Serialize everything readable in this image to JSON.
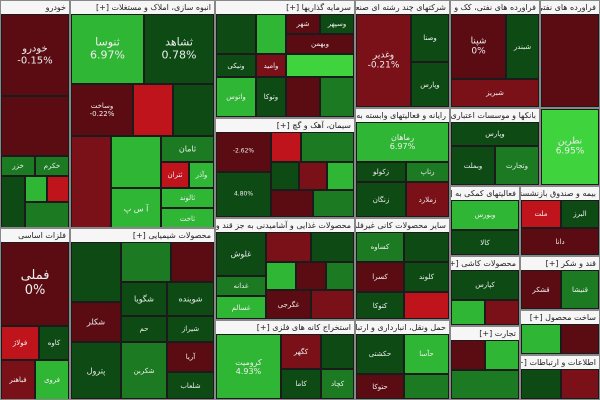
{
  "colors": {
    "dark_red": "#5a0c12",
    "mid_red": "#7a1018",
    "red": "#c0141c",
    "dark_green": "#0d4a14",
    "mid_green": "#1c7a22",
    "green": "#2fb635",
    "light_green": "#3fd43e"
  },
  "sections": [
    {
      "title": "خودرو",
      "tiles": [
        {
          "symbol": "خودرو",
          "pct": "-0.15%"
        },
        {
          "symbol": "",
          "pct": ""
        },
        {
          "symbol": "خزر",
          "pct": ""
        },
        {
          "symbol": "خکرم",
          "pct": ""
        }
      ]
    },
    {
      "title": "انبوه سازی، املاک و مستغلات [+]",
      "tiles": [
        {
          "symbol": "ثنوسا",
          "pct": "6.97%"
        },
        {
          "symbol": "ثشاهد",
          "pct": "0.78%"
        },
        {
          "symbol": "وساخت",
          "pct": "-0.22%"
        },
        {
          "symbol": "ثامان",
          "pct": ""
        },
        {
          "symbol": "ثتران",
          "pct": ""
        },
        {
          "symbol": "وآذر",
          "pct": ""
        },
        {
          "symbol": "ثالوند",
          "pct": ""
        },
        {
          "symbol": "آ س پ",
          "pct": ""
        },
        {
          "symbol": "ثاخت",
          "pct": ""
        }
      ]
    },
    {
      "title": "سرمایه گذاریها [+]",
      "tiles": [
        {
          "symbol": "وسپهر",
          "pct": ""
        },
        {
          "symbol": "شهر",
          "pct": ""
        },
        {
          "symbol": "وبهمن",
          "pct": ""
        },
        {
          "symbol": "ونیکی",
          "pct": ""
        },
        {
          "symbol": "وامید",
          "pct": ""
        },
        {
          "symbol": "وتوکا",
          "pct": ""
        },
        {
          "symbol": "واتوس",
          "pct": ""
        }
      ]
    },
    {
      "title": "شرکتهای چند رشته ای صنعتی [+]",
      "tiles": [
        {
          "symbol": "وغدیر",
          "pct": "-0.21%"
        },
        {
          "symbol": "وصنا",
          "pct": ""
        },
        {
          "symbol": "وپارس",
          "pct": ""
        }
      ]
    },
    {
      "title": "فراورده های نفتی، کک و سوخت هس [+]",
      "tiles": [
        {
          "symbol": "شپنا",
          "pct": "0%"
        },
        {
          "symbol": "شبندر",
          "pct": ""
        },
        {
          "symbol": "شبریز",
          "pct": ""
        }
      ]
    },
    {
      "title": "فلزات اساسی",
      "tiles": [
        {
          "symbol": "فملی",
          "pct": "0%"
        },
        {
          "symbol": "فولاژ",
          "pct": ""
        },
        {
          "symbol": "کاوه",
          "pct": ""
        },
        {
          "symbol": "فباهنر",
          "pct": ""
        },
        {
          "symbol": "فروی",
          "pct": ""
        }
      ]
    },
    {
      "title": "محصولات شیمیایی [+]",
      "tiles": [
        {
          "symbol": "شگویا",
          "pct": ""
        },
        {
          "symbol": "شوینده",
          "pct": ""
        },
        {
          "symbol": "شکلر",
          "pct": ""
        },
        {
          "symbol": "حم",
          "pct": ""
        },
        {
          "symbol": "شیراز",
          "pct": ""
        },
        {
          "symbol": "پترول",
          "pct": ""
        },
        {
          "symbol": "شکربن",
          "pct": ""
        },
        {
          "symbol": "آریا",
          "pct": ""
        },
        {
          "symbol": "شلعاب",
          "pct": ""
        }
      ]
    },
    {
      "title": "سیمان، آهک و گچ [+]",
      "tiles": [
        {
          "symbol": "",
          "pct": "-2.62%"
        },
        {
          "symbol": "",
          "pct": "4.80%"
        },
        {
          "symbol": "",
          "pct": ""
        }
      ]
    },
    {
      "title": "محصولات غذایی و آشامیدنی به جز قند و شکر [+]",
      "tiles": [
        {
          "symbol": "غلوش",
          "pct": ""
        },
        {
          "symbol": "غدانه",
          "pct": ""
        },
        {
          "symbol": "غسالم",
          "pct": ""
        },
        {
          "symbol": "غگرجی",
          "pct": ""
        }
      ]
    },
    {
      "title": "استخراج کانه های فلزی [+]",
      "tiles": [
        {
          "symbol": "کرومیت",
          "pct": "4.93%"
        },
        {
          "symbol": "کگهر",
          "pct": ""
        },
        {
          "symbol": "کاما",
          "pct": ""
        },
        {
          "symbol": "کچاد",
          "pct": ""
        }
      ]
    },
    {
      "title": "رایانه و فعالیتهای وابسته به آن [+]",
      "tiles": [
        {
          "symbol": "رتاپ",
          "pct": ""
        },
        {
          "symbol": "رماهان",
          "pct": "6.97%"
        },
        {
          "symbol": "زکولو",
          "pct": ""
        },
        {
          "symbol": "زنگان",
          "pct": ""
        },
        {
          "symbol": "زملارد",
          "pct": ""
        }
      ]
    },
    {
      "title": "سایر محصولات کانی غیرفلزی [+]",
      "tiles": [
        {
          "symbol": "کساوه",
          "pct": ""
        },
        {
          "symbol": "کسرا",
          "pct": ""
        },
        {
          "symbol": "کلوند",
          "pct": ""
        },
        {
          "symbol": "کتوکا",
          "pct": ""
        }
      ]
    },
    {
      "title": "حمل ونقل، انبارداری و ارتباطات [+]",
      "tiles": [
        {
          "symbol": "حکشتی",
          "pct": ""
        },
        {
          "symbol": "حآسا",
          "pct": ""
        },
        {
          "symbol": "حتوکا",
          "pct": ""
        }
      ]
    },
    {
      "title": "بانکها و موسسات اعتباری [+]",
      "tiles": [
        {
          "symbol": "وپارس",
          "pct": ""
        },
        {
          "symbol": "وبملت",
          "pct": ""
        },
        {
          "symbol": "وتجارت",
          "pct": ""
        }
      ]
    },
    {
      "title": "فعالیتهای کمکی به [+]",
      "tiles": [
        {
          "symbol": "وبورس",
          "pct": ""
        },
        {
          "symbol": "کالا",
          "pct": ""
        }
      ]
    },
    {
      "title": "محصولات کاشی [+]",
      "tiles": [
        {
          "symbol": "کپارس",
          "pct": ""
        }
      ]
    },
    {
      "title": "بیمه و صندوق بازنشستگی [+]",
      "tiles": [
        {
          "symbol": "ملت",
          "pct": ""
        },
        {
          "symbol": "البرز",
          "pct": ""
        },
        {
          "symbol": "دانا",
          "pct": ""
        }
      ]
    },
    {
      "title": "فراورده های نفتی",
      "tiles": [
        {
          "symbol": "نطرین",
          "pct": "6.95%"
        }
      ]
    },
    {
      "title": "قند و شکر [+]",
      "tiles": [
        {
          "symbol": "قشکر",
          "pct": ""
        },
        {
          "symbol": "قنیشا",
          "pct": ""
        }
      ]
    },
    {
      "title": "ساخت محصول [+]",
      "tiles": [
        {
          "symbol": "",
          "pct": ""
        }
      ]
    },
    {
      "title": "اطلاعات و ارتباطات [+]",
      "tiles": [
        {
          "symbol": "",
          "pct": ""
        }
      ]
    },
    {
      "title": "تجارت [+]",
      "tiles": [
        {
          "symbol": "",
          "pct": ""
        }
      ]
    }
  ]
}
